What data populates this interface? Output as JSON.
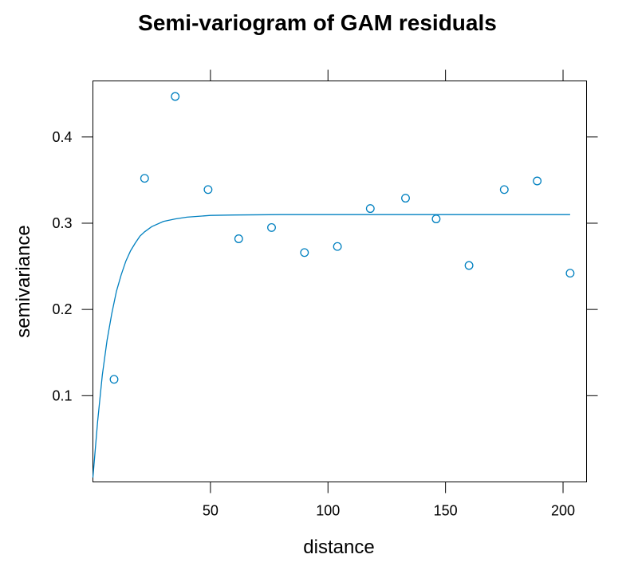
{
  "chart_data": {
    "type": "scatter",
    "title": "Semi-variogram of GAM residuals",
    "xlabel": "distance",
    "ylabel": "semivariance",
    "xlim": [
      0,
      210
    ],
    "ylim": [
      0,
      0.465
    ],
    "x_ticks": [
      50,
      100,
      150,
      200
    ],
    "x_tick_labels": [
      "50",
      "100",
      "150",
      "200"
    ],
    "y_ticks": [
      0.1,
      0.2,
      0.3,
      0.4
    ],
    "y_tick_labels": [
      "0.1",
      "0.2",
      "0.3",
      "0.4"
    ],
    "grid": false,
    "color": "#0080c0",
    "points": {
      "x": [
        9,
        22,
        35,
        49,
        62,
        76,
        90,
        104,
        118,
        133,
        146,
        160,
        175,
        189,
        203
      ],
      "y": [
        0.119,
        0.352,
        0.447,
        0.339,
        0.282,
        0.295,
        0.266,
        0.273,
        0.317,
        0.329,
        0.305,
        0.251,
        0.339,
        0.349,
        0.242
      ]
    },
    "fitted_curve": {
      "x": [
        0,
        2,
        4,
        6,
        8,
        10,
        12,
        14,
        16,
        18,
        20,
        22,
        25,
        30,
        35,
        40,
        50,
        60,
        80,
        100,
        150,
        203
      ],
      "y": [
        0.005,
        0.07,
        0.124,
        0.164,
        0.195,
        0.221,
        0.24,
        0.256,
        0.268,
        0.277,
        0.285,
        0.29,
        0.296,
        0.302,
        0.305,
        0.307,
        0.309,
        0.3095,
        0.31,
        0.31,
        0.31,
        0.31
      ]
    }
  }
}
